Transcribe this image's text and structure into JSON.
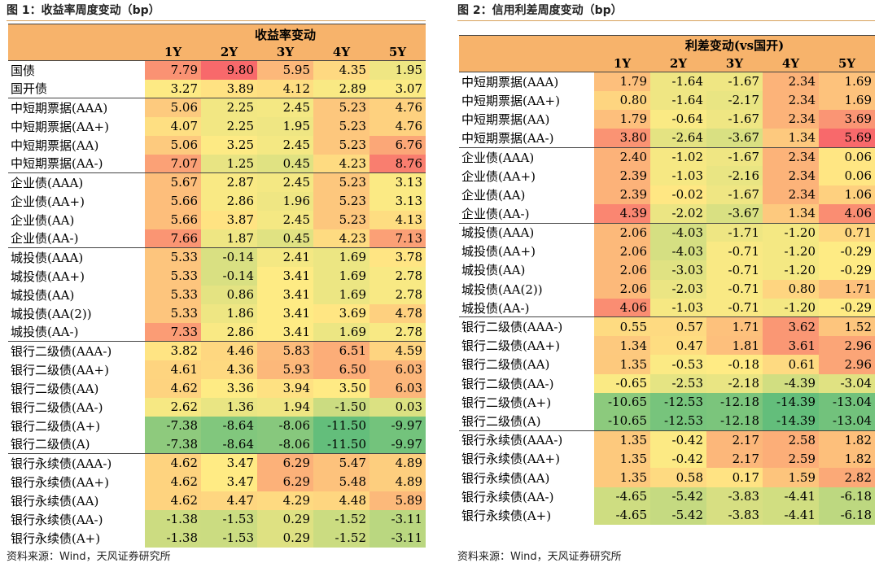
{
  "left": {
    "caption": "图 1：收益率周度变动（bp）",
    "source": "资料来源：Wind，天风证券研究所",
    "header_title": "收益率变动",
    "columns": [
      "1Y",
      "2Y",
      "3Y",
      "4Y",
      "5Y"
    ],
    "rows": [
      {
        "label": "国债",
        "values": [
          "7.79",
          "9.80",
          "5.95",
          "4.35",
          "1.95"
        ],
        "group_start": true
      },
      {
        "label": "国开债",
        "values": [
          "3.27",
          "3.89",
          "4.12",
          "2.89",
          "3.07"
        ]
      },
      {
        "label": "中短期票据(AAA)",
        "values": [
          "5.06",
          "2.25",
          "2.45",
          "5.23",
          "4.76"
        ],
        "group_start": true
      },
      {
        "label": "中短期票据(AA+)",
        "values": [
          "4.07",
          "2.25",
          "1.95",
          "5.23",
          "4.76"
        ]
      },
      {
        "label": "中短期票据(AA)",
        "values": [
          "5.06",
          "3.25",
          "2.45",
          "5.23",
          "6.76"
        ]
      },
      {
        "label": "中短期票据(AA-)",
        "values": [
          "7.07",
          "1.25",
          "0.45",
          "4.23",
          "8.76"
        ]
      },
      {
        "label": "企业债(AAA)",
        "values": [
          "5.67",
          "2.87",
          "2.45",
          "5.23",
          "3.13"
        ],
        "group_start": true
      },
      {
        "label": "企业债(AA+)",
        "values": [
          "5.66",
          "2.86",
          "1.96",
          "5.23",
          "3.13"
        ]
      },
      {
        "label": "企业债(AA)",
        "values": [
          "5.66",
          "3.87",
          "2.45",
          "5.23",
          "4.13"
        ]
      },
      {
        "label": "企业债(AA-)",
        "values": [
          "7.66",
          "1.87",
          "0.45",
          "4.23",
          "7.13"
        ]
      },
      {
        "label": "城投债(AAA)",
        "values": [
          "5.33",
          "-0.14",
          "2.41",
          "1.69",
          "3.78"
        ],
        "group_start": true
      },
      {
        "label": "城投债(AA+)",
        "values": [
          "5.33",
          "-0.14",
          "3.41",
          "1.69",
          "2.78"
        ]
      },
      {
        "label": "城投债(AA)",
        "values": [
          "5.33",
          "0.86",
          "3.41",
          "1.69",
          "2.78"
        ]
      },
      {
        "label": "城投债(AA(2))",
        "values": [
          "5.33",
          "1.86",
          "3.41",
          "3.69",
          "4.78"
        ]
      },
      {
        "label": "城投债(AA-)",
        "values": [
          "7.33",
          "2.86",
          "3.41",
          "1.69",
          "2.78"
        ]
      },
      {
        "label": "银行二级债(AAA-)",
        "values": [
          "3.82",
          "4.46",
          "5.83",
          "6.51",
          "4.59"
        ],
        "group_start": true
      },
      {
        "label": "银行二级债(AA+)",
        "values": [
          "4.61",
          "4.36",
          "5.93",
          "6.50",
          "6.03"
        ]
      },
      {
        "label": "银行二级债(AA)",
        "values": [
          "4.62",
          "3.36",
          "3.94",
          "3.50",
          "6.03"
        ]
      },
      {
        "label": "银行二级债(AA-)",
        "values": [
          "2.62",
          "1.36",
          "1.94",
          "-1.50",
          "0.03"
        ]
      },
      {
        "label": "银行二级债(A+)",
        "values": [
          "-7.38",
          "-8.64",
          "-8.06",
          "-11.50",
          "-9.97"
        ]
      },
      {
        "label": "银行二级债(A)",
        "values": [
          "-7.38",
          "-8.64",
          "-8.06",
          "-11.50",
          "-9.97"
        ]
      },
      {
        "label": "银行永续债(AAA-)",
        "values": [
          "4.62",
          "3.47",
          "6.29",
          "5.47",
          "4.89"
        ],
        "group_start": true
      },
      {
        "label": "银行永续债(AA+)",
        "values": [
          "4.62",
          "3.47",
          "6.29",
          "5.48",
          "4.89"
        ]
      },
      {
        "label": "银行永续债(AA)",
        "values": [
          "4.62",
          "4.47",
          "4.29",
          "4.48",
          "5.89"
        ]
      },
      {
        "label": "银行永续债(AA-)",
        "values": [
          "-1.38",
          "-1.53",
          "0.29",
          "-1.52",
          "-3.11"
        ]
      },
      {
        "label": "银行永续债(A+)",
        "values": [
          "-1.38",
          "-1.53",
          "0.29",
          "-1.52",
          "-3.11"
        ]
      }
    ]
  },
  "right": {
    "caption": "图 2：信用利差周度变动（bp）",
    "source": "资料来源：Wind，天风证券研究所",
    "header_title": "利差变动(vs国开)",
    "columns": [
      "1Y",
      "2Y",
      "3Y",
      "4Y",
      "5Y"
    ],
    "rows": [
      {
        "label": "中短期票据(AAA)",
        "values": [
          "1.79",
          "-1.64",
          "-1.67",
          "2.34",
          "1.69"
        ],
        "group_start": true
      },
      {
        "label": "中短期票据(AA+)",
        "values": [
          "0.80",
          "-1.64",
          "-2.17",
          "2.34",
          "1.69"
        ]
      },
      {
        "label": "中短期票据(AA)",
        "values": [
          "1.79",
          "-0.64",
          "-1.67",
          "2.34",
          "3.69"
        ]
      },
      {
        "label": "中短期票据(AA-)",
        "values": [
          "3.80",
          "-2.64",
          "-3.67",
          "1.34",
          "5.69"
        ]
      },
      {
        "label": "企业债(AAA)",
        "values": [
          "2.40",
          "-1.02",
          "-1.67",
          "2.34",
          "0.06"
        ],
        "group_start": true
      },
      {
        "label": "企业债(AA+)",
        "values": [
          "2.39",
          "-1.03",
          "-2.16",
          "2.34",
          "0.06"
        ]
      },
      {
        "label": "企业债(AA)",
        "values": [
          "2.39",
          "-0.02",
          "-1.67",
          "2.34",
          "1.06"
        ]
      },
      {
        "label": "企业债(AA-)",
        "values": [
          "4.39",
          "-2.02",
          "-3.67",
          "1.34",
          "4.06"
        ]
      },
      {
        "label": "城投债(AAA)",
        "values": [
          "2.06",
          "-4.03",
          "-1.71",
          "-1.20",
          "0.71"
        ],
        "group_start": true
      },
      {
        "label": "城投债(AA+)",
        "values": [
          "2.06",
          "-4.03",
          "-0.71",
          "-1.20",
          "-0.29"
        ]
      },
      {
        "label": "城投债(AA)",
        "values": [
          "2.06",
          "-3.03",
          "-0.71",
          "-1.20",
          "-0.29"
        ]
      },
      {
        "label": "城投债(AA(2))",
        "values": [
          "2.06",
          "-2.03",
          "-0.71",
          "0.80",
          "1.71"
        ]
      },
      {
        "label": "城投债(AA-)",
        "values": [
          "4.06",
          "-1.03",
          "-0.71",
          "-1.20",
          "-0.29"
        ]
      },
      {
        "label": "银行二级债(AAA-)",
        "values": [
          "0.55",
          "0.57",
          "1.71",
          "3.62",
          "1.52"
        ],
        "group_start": true
      },
      {
        "label": "银行二级债(AA+)",
        "values": [
          "1.34",
          "0.47",
          "1.81",
          "3.61",
          "2.96"
        ]
      },
      {
        "label": "银行二级债(AA)",
        "values": [
          "1.35",
          "-0.53",
          "-0.18",
          "0.61",
          "2.96"
        ]
      },
      {
        "label": "银行二级债(AA-)",
        "values": [
          "-0.65",
          "-2.53",
          "-2.18",
          "-4.39",
          "-3.04"
        ]
      },
      {
        "label": "银行二级债(A+)",
        "values": [
          "-10.65",
          "-12.53",
          "-12.18",
          "-14.39",
          "-13.04"
        ]
      },
      {
        "label": "银行二级债(A)",
        "values": [
          "-10.65",
          "-12.53",
          "-12.18",
          "-14.39",
          "-13.04"
        ]
      },
      {
        "label": "银行永续债(AAA-)",
        "values": [
          "1.35",
          "-0.42",
          "2.17",
          "2.58",
          "1.82"
        ],
        "group_start": true
      },
      {
        "label": "银行永续债(AA+)",
        "values": [
          "1.35",
          "-0.42",
          "2.17",
          "2.59",
          "1.82"
        ]
      },
      {
        "label": "银行永续债(AA)",
        "values": [
          "1.35",
          "0.58",
          "0.17",
          "1.59",
          "2.82"
        ]
      },
      {
        "label": "银行永续债(AA-)",
        "values": [
          "-4.65",
          "-5.42",
          "-3.83",
          "-4.41",
          "-6.18"
        ]
      },
      {
        "label": "银行永续债(A+)",
        "values": [
          "-4.65",
          "-5.42",
          "-3.83",
          "-4.41",
          "-6.18"
        ]
      }
    ]
  },
  "chart_data": [
    {
      "type": "heatmap",
      "title": "收益率变动",
      "columns": [
        "1Y",
        "2Y",
        "3Y",
        "4Y",
        "5Y"
      ],
      "rows": [
        "国债",
        "国开债",
        "中短期票据(AAA)",
        "中短期票据(AA+)",
        "中短期票据(AA)",
        "中短期票据(AA-)",
        "企业债(AAA)",
        "企业债(AA+)",
        "企业债(AA)",
        "企业债(AA-)",
        "城投债(AAA)",
        "城投债(AA+)",
        "城投债(AA)",
        "城投债(AA(2))",
        "城投债(AA-)",
        "银行二级债(AAA-)",
        "银行二级债(AA+)",
        "银行二级债(AA)",
        "银行二级债(AA-)",
        "银行二级债(A+)",
        "银行二级债(A)",
        "银行永续债(AAA-)",
        "银行永续债(AA+)",
        "银行永续债(AA)",
        "银行永续债(AA-)",
        "银行永续债(A+)"
      ],
      "values": [
        [
          7.79,
          9.8,
          5.95,
          4.35,
          1.95
        ],
        [
          3.27,
          3.89,
          4.12,
          2.89,
          3.07
        ],
        [
          5.06,
          2.25,
          2.45,
          5.23,
          4.76
        ],
        [
          4.07,
          2.25,
          1.95,
          5.23,
          4.76
        ],
        [
          5.06,
          3.25,
          2.45,
          5.23,
          6.76
        ],
        [
          7.07,
          1.25,
          0.45,
          4.23,
          8.76
        ],
        [
          5.67,
          2.87,
          2.45,
          5.23,
          3.13
        ],
        [
          5.66,
          2.86,
          1.96,
          5.23,
          3.13
        ],
        [
          5.66,
          3.87,
          2.45,
          5.23,
          4.13
        ],
        [
          7.66,
          1.87,
          0.45,
          4.23,
          7.13
        ],
        [
          5.33,
          -0.14,
          2.41,
          1.69,
          3.78
        ],
        [
          5.33,
          -0.14,
          3.41,
          1.69,
          2.78
        ],
        [
          5.33,
          0.86,
          3.41,
          1.69,
          2.78
        ],
        [
          5.33,
          1.86,
          3.41,
          3.69,
          4.78
        ],
        [
          7.33,
          2.86,
          3.41,
          1.69,
          2.78
        ],
        [
          3.82,
          4.46,
          5.83,
          6.51,
          4.59
        ],
        [
          4.61,
          4.36,
          5.93,
          6.5,
          6.03
        ],
        [
          4.62,
          3.36,
          3.94,
          3.5,
          6.03
        ],
        [
          2.62,
          1.36,
          1.94,
          -1.5,
          0.03
        ],
        [
          -7.38,
          -8.64,
          -8.06,
          -11.5,
          -9.97
        ],
        [
          -7.38,
          -8.64,
          -8.06,
          -11.5,
          -9.97
        ],
        [
          4.62,
          3.47,
          6.29,
          5.47,
          4.89
        ],
        [
          4.62,
          3.47,
          6.29,
          5.48,
          4.89
        ],
        [
          4.62,
          4.47,
          4.29,
          4.48,
          5.89
        ],
        [
          -1.38,
          -1.53,
          0.29,
          -1.52,
          -3.11
        ],
        [
          -1.38,
          -1.53,
          0.29,
          -1.52,
          -3.11
        ]
      ]
    },
    {
      "type": "heatmap",
      "title": "利差变动(vs国开)",
      "columns": [
        "1Y",
        "2Y",
        "3Y",
        "4Y",
        "5Y"
      ],
      "rows": [
        "中短期票据(AAA)",
        "中短期票据(AA+)",
        "中短期票据(AA)",
        "中短期票据(AA-)",
        "企业债(AAA)",
        "企业债(AA+)",
        "企业债(AA)",
        "企业债(AA-)",
        "城投债(AAA)",
        "城投债(AA+)",
        "城投债(AA)",
        "城投债(AA(2))",
        "城投债(AA-)",
        "银行二级债(AAA-)",
        "银行二级债(AA+)",
        "银行二级债(AA)",
        "银行二级债(AA-)",
        "银行二级债(A+)",
        "银行二级债(A)",
        "银行永续债(AAA-)",
        "银行永续债(AA+)",
        "银行永续债(AA)",
        "银行永续债(AA-)",
        "银行永续债(A+)"
      ],
      "values": [
        [
          1.79,
          -1.64,
          -1.67,
          2.34,
          1.69
        ],
        [
          0.8,
          -1.64,
          -2.17,
          2.34,
          1.69
        ],
        [
          1.79,
          -0.64,
          -1.67,
          2.34,
          3.69
        ],
        [
          3.8,
          -2.64,
          -3.67,
          1.34,
          5.69
        ],
        [
          2.4,
          -1.02,
          -1.67,
          2.34,
          0.06
        ],
        [
          2.39,
          -1.03,
          -2.16,
          2.34,
          0.06
        ],
        [
          2.39,
          -0.02,
          -1.67,
          2.34,
          1.06
        ],
        [
          4.39,
          -2.02,
          -3.67,
          1.34,
          4.06
        ],
        [
          2.06,
          -4.03,
          -1.71,
          -1.2,
          0.71
        ],
        [
          2.06,
          -4.03,
          -0.71,
          -1.2,
          -0.29
        ],
        [
          2.06,
          -3.03,
          -0.71,
          -1.2,
          -0.29
        ],
        [
          2.06,
          -2.03,
          -0.71,
          0.8,
          1.71
        ],
        [
          4.06,
          -1.03,
          -0.71,
          -1.2,
          -0.29
        ],
        [
          0.55,
          0.57,
          1.71,
          3.62,
          1.52
        ],
        [
          1.34,
          0.47,
          1.81,
          3.61,
          2.96
        ],
        [
          1.35,
          -0.53,
          -0.18,
          0.61,
          2.96
        ],
        [
          -0.65,
          -2.53,
          -2.18,
          -4.39,
          -3.04
        ],
        [
          -10.65,
          -12.53,
          -12.18,
          -14.39,
          -13.04
        ],
        [
          -10.65,
          -12.53,
          -12.18,
          -14.39,
          -13.04
        ],
        [
          1.35,
          -0.42,
          2.17,
          2.58,
          1.82
        ],
        [
          1.35,
          -0.42,
          2.17,
          2.59,
          1.82
        ],
        [
          1.35,
          0.58,
          0.17,
          1.59,
          2.82
        ],
        [
          -4.65,
          -5.42,
          -3.83,
          -4.41,
          -6.18
        ],
        [
          -4.65,
          -5.42,
          -3.83,
          -4.41,
          -6.18
        ]
      ]
    }
  ],
  "colors": {
    "header": "#f7b36b",
    "red": "#f8696b",
    "yellow": "#ffeb84",
    "green": "#63be7b"
  }
}
